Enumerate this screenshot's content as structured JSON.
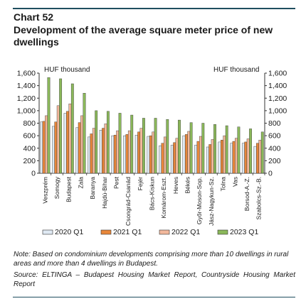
{
  "header": {
    "label": "Chart 52",
    "title": "Development of the average square meter price of new dwellings"
  },
  "chart_data": {
    "type": "bar",
    "y_unit_left": "HUF thousand",
    "y_unit_right": "HUF thousand",
    "ylim": [
      0,
      1600
    ],
    "yticks": [
      0,
      200,
      400,
      600,
      800,
      1000,
      1200,
      1400,
      1600
    ],
    "ytick_labels": [
      "0",
      "200",
      "400",
      "600",
      "800",
      "1,000",
      "1,200",
      "1,400",
      "1,600"
    ],
    "categories": [
      "Veszprém",
      "Somogy",
      "Budapest",
      "Zala",
      "Baranya",
      "Hajdú-Bihar",
      "Pest",
      "Csongrád-Csanád",
      "Fejér",
      "Bács-Kiskun",
      "Komárom-Eszt.",
      "Heves",
      "Békés",
      "Győr-Moson-Sop.",
      "Jász-Nagykun-Sz.",
      "Tolna",
      "Vas",
      "Borsod-A.-Z.",
      "Szabolcs-Sz.-B."
    ],
    "series": [
      {
        "name": "2020 Q1",
        "color": "#dfe9f3",
        "values": [
          820,
          750,
          960,
          730,
          580,
          690,
          600,
          600,
          610,
          590,
          440,
          450,
          600,
          450,
          420,
          500,
          480,
          480,
          430
        ]
      },
      {
        "name": "2021 Q1",
        "color": "#e8873a",
        "values": [
          830,
          820,
          990,
          810,
          630,
          720,
          610,
          620,
          660,
          600,
          480,
          490,
          620,
          510,
          460,
          530,
          510,
          500,
          480
        ]
      },
      {
        "name": "2022 Q1",
        "color": "#f2b89c",
        "values": [
          920,
          1080,
          1110,
          920,
          720,
          790,
          680,
          680,
          720,
          660,
          580,
          560,
          670,
          590,
          540,
          600,
          560,
          550,
          530
        ]
      },
      {
        "name": "2023 Q1",
        "color": "#8bb85a",
        "values": [
          1530,
          1510,
          1430,
          1280,
          1000,
          990,
          960,
          930,
          880,
          880,
          860,
          850,
          810,
          800,
          780,
          760,
          740,
          710,
          660
        ]
      }
    ],
    "grid": false,
    "legend_position": "bottom"
  },
  "footer": {
    "note": "Note: Based on condominium developments comprising more than 10 dwellings in rural areas and more than 4 dwellings in Budapest.",
    "source": "Source: ELTINGA – Budapest Housing Market Report, Countryside Housing Market Report"
  },
  "colors": {
    "rule": "#1f4e5f",
    "axis": "#333333"
  }
}
